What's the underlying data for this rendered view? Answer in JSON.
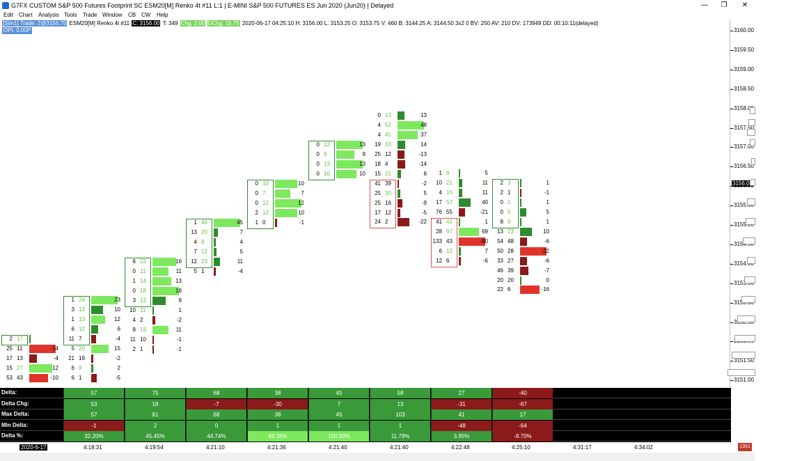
{
  "window": {
    "title": "G7FX CUSTOM S&P 500 Futures Footprint  SC ESM20[M]  Renko 4t  #11  L:1 | E-MINI S&P 500 FUTURES ES Jun 2020 (Jun20) | Delayed",
    "minimize": "—",
    "maximize": "❐",
    "close": "✕"
  },
  "menu": [
    "Edit",
    "Chart",
    "Analysis",
    "Tools",
    "Trade",
    "Window",
    "CB",
    "CW",
    "Help"
  ],
  "info": {
    "sim": "[Sim1]  Trade: 2@3156.75",
    "symbol": "ESM20[M]  Renko 4t  #11",
    "close": "C: 3156.00",
    "ticks": "T: 349",
    "chg": "Chg: 2.00",
    "dchg": "DChg: 15.75",
    "rest": "2020-06-17 04:25:10 H: 3156.00 L: 3153.25 O: 3153.75 V: 460 B: 3144.25 A: 3144.50 3x2 0 BV: 250 AV: 210 DV: 173949 DD: 00:10:11(delayed)",
    "opi": "OPI: 0.00P"
  },
  "axis": {
    "labels": [
      "3160.00",
      "3159.50",
      "3159.00",
      "3158.50",
      "3158.00",
      "3157.50",
      "3157.00",
      "3156.50",
      "3156.00",
      "3155.50",
      "3155.00",
      "3154.50",
      "3154.00",
      "3153.50",
      "3153.00",
      "3152.50",
      "3152.00",
      "3151.50",
      "3151.00"
    ],
    "current": "3156.00"
  },
  "colors": {
    "green": "#2e8b2e",
    "light_green": "#7ee85f",
    "dark_red": "#8b1a1a",
    "red": "#e0342a",
    "ask_green": "#58c43a"
  },
  "footprint": [
    {
      "rows": [
        [
          "2",
          "17",
          "",
          "",
          ""
        ],
        [
          "25",
          "11",
          "-14",
          "-14",
          ""
        ],
        [
          "17",
          "13",
          "-4",
          "-4",
          ""
        ],
        [
          "15",
          "27",
          "12",
          "12",
          ""
        ],
        [
          "53",
          "43",
          "-10",
          "-10",
          ""
        ]
      ]
    },
    {
      "rows": [
        [
          "1",
          "24",
          "23",
          "23",
          ""
        ],
        [
          "3",
          "13",
          "10",
          "10",
          ""
        ],
        [
          "1",
          "13",
          "12",
          "12",
          ""
        ],
        [
          "6",
          "12",
          "6",
          "6",
          ""
        ],
        [
          "11",
          "7",
          "-4",
          "-4",
          ""
        ],
        [
          "5",
          "20",
          "15",
          "15",
          ""
        ],
        [
          "21",
          "19",
          "-2",
          "-2",
          ""
        ],
        [
          "6",
          "8",
          "2",
          "2",
          ""
        ],
        [
          "6",
          "1",
          "-5",
          "-5",
          ""
        ]
      ]
    },
    {
      "rows": [
        [
          "6",
          "22",
          "16",
          "16",
          ""
        ],
        [
          "0",
          "11",
          "11",
          "11",
          ""
        ],
        [
          "1",
          "14",
          "13",
          "13",
          ""
        ],
        [
          "0",
          "18",
          "18",
          "18",
          ""
        ],
        [
          "3",
          "12",
          "9",
          "9",
          ""
        ],
        [
          "10",
          "11",
          "1",
          "1",
          ""
        ],
        [
          "4",
          "2",
          "-2",
          "-2",
          ""
        ],
        [
          "8",
          "19",
          "11",
          "11",
          ""
        ],
        [
          "11",
          "10",
          "-1",
          "-1",
          ""
        ],
        [
          "2",
          "1",
          "-1",
          "-1",
          ""
        ]
      ]
    },
    {
      "rows": [
        [
          "1",
          "46",
          "45",
          "45",
          ""
        ],
        [
          "13",
          "20",
          "7",
          "7",
          ""
        ],
        [
          "4",
          "8",
          "4",
          "4",
          ""
        ],
        [
          "7",
          "12",
          "5",
          "5",
          ""
        ],
        [
          "12",
          "23",
          "11",
          "11",
          ""
        ],
        [
          "5",
          "1",
          "-4",
          "-4",
          ""
        ]
      ]
    },
    {
      "rows": [
        [
          "0",
          "10",
          "10",
          "10",
          ""
        ],
        [
          "0",
          "7",
          "7",
          "7",
          ""
        ],
        [
          "0",
          "12",
          "12",
          "12",
          ""
        ],
        [
          "2",
          "12",
          "10",
          "10",
          ""
        ],
        [
          "1",
          "0",
          "-1",
          "-1",
          ""
        ]
      ]
    },
    {
      "rows": [
        [
          "0",
          "13",
          "13",
          "13",
          ""
        ],
        [
          "0",
          "9",
          "9",
          "9",
          ""
        ],
        [
          "0",
          "13",
          "13",
          "13",
          ""
        ],
        [
          "0",
          "10",
          "10",
          "10",
          ""
        ]
      ]
    },
    {
      "rows": [
        [
          "0",
          "13",
          "13",
          "13",
          ""
        ],
        [
          "4",
          "52",
          "48",
          "48",
          ""
        ],
        [
          "4",
          "41",
          "37",
          "37",
          ""
        ],
        [
          "19",
          "33",
          "14",
          "14",
          ""
        ],
        [
          "25",
          "12",
          "-13",
          "-13",
          ""
        ],
        [
          "18",
          "4",
          "-14",
          "-14",
          ""
        ],
        [
          "15",
          "21",
          "6",
          "6",
          ""
        ],
        [
          "41",
          "39",
          "-2",
          "-2",
          ""
        ],
        [
          "25",
          "30",
          "5",
          "5",
          ""
        ],
        [
          "25",
          "16",
          "-9",
          "-9",
          ""
        ],
        [
          "17",
          "12",
          "-5",
          "-5",
          ""
        ],
        [
          "24",
          "2",
          "-22",
          "-22",
          ""
        ]
      ]
    },
    {
      "rows": [
        [
          "1",
          "6",
          "5",
          "5",
          ""
        ],
        [
          "10",
          "21",
          "11",
          "11",
          ""
        ],
        [
          "4",
          "15",
          "11",
          "11",
          ""
        ],
        [
          "17",
          "57",
          "40",
          "40",
          ""
        ],
        [
          "76",
          "55",
          "-21",
          "-21",
          ""
        ],
        [
          "41",
          "42",
          "1",
          "1",
          ""
        ],
        [
          "28",
          "97",
          "69",
          "69",
          ""
        ],
        [
          "133",
          "43",
          "-90",
          "-90",
          ""
        ],
        [
          "6",
          "13",
          "7",
          "7",
          ""
        ],
        [
          "12",
          "6",
          "-6",
          "-6",
          ""
        ]
      ]
    },
    {
      "rows": [
        [
          "2",
          "3",
          "1",
          "1",
          ""
        ],
        [
          "2",
          "1",
          "-1",
          "-1",
          ""
        ],
        [
          "0",
          "1",
          "1",
          "1",
          ""
        ],
        [
          "0",
          "5",
          "5",
          "5",
          ""
        ],
        [
          "8",
          "9",
          "1",
          "1",
          ""
        ],
        [
          "13",
          "23",
          "10",
          "10",
          ""
        ],
        [
          "54",
          "48",
          "-6",
          "-6",
          ""
        ],
        [
          "50",
          "28",
          "-22",
          "-22",
          ""
        ],
        [
          "33",
          "27",
          "-6",
          "-6",
          ""
        ],
        [
          "46",
          "39",
          "-7",
          "-7",
          ""
        ],
        [
          "20",
          "20",
          "0",
          "0",
          ""
        ],
        [
          "22",
          "6",
          "-16",
          "-16",
          ""
        ]
      ]
    }
  ],
  "stats": {
    "labels": [
      "Delta:",
      "Delta Chg:",
      "Max Delta:",
      "Min Delta:",
      "Delta %:"
    ],
    "rows": [
      [
        "57",
        "75",
        "68",
        "38",
        "45",
        "58",
        "27",
        "-40"
      ],
      [
        "53",
        "18",
        "-7",
        "-30",
        "7",
        "13",
        "-31",
        "-67"
      ],
      [
        "57",
        "81",
        "68",
        "38",
        "45",
        "103",
        "41",
        "17"
      ],
      [
        "-1",
        "2",
        "0",
        "1",
        "1",
        "1",
        "-48",
        "-64"
      ],
      [
        "32.20%",
        "45.45%",
        "44.74%",
        "86.36%",
        "100.00%",
        "11.79%",
        "3.95%",
        "-8.70%"
      ]
    ]
  },
  "time": {
    "date": "2020-6-17",
    "ticks": [
      "4:18:31",
      "4:19:54",
      "4:21:10",
      "4:21:36",
      "4:21:40",
      "4:21:40",
      "4:22:48",
      "4:25:10",
      "4:31:17",
      "4:34:02"
    ]
  },
  "corner_badge": "1351"
}
